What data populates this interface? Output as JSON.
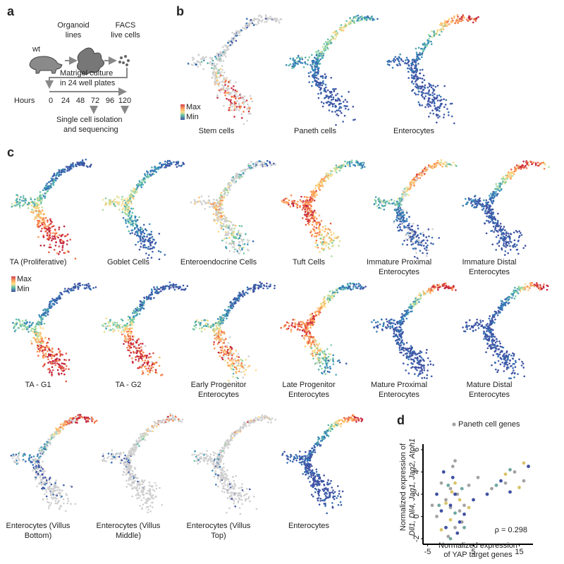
{
  "panel_a": {
    "label": "a",
    "wt": "wt",
    "organoid": [
      "Organoid",
      "lines"
    ],
    "facs": [
      "FACS",
      "live cells"
    ],
    "matrigel": [
      "Matrigel culture",
      "in 24 well plates"
    ],
    "hours_label": "Hours",
    "hours": [
      0,
      24,
      48,
      72,
      96,
      120
    ],
    "isolation": [
      "Single cell isolation",
      "and sequencing"
    ]
  },
  "panel_b": {
    "label": "b",
    "legend_max": "Max",
    "legend_min": "Min",
    "plots": [
      [
        "Stem cells"
      ],
      [
        "Paneth cells"
      ],
      [
        "Enterocytes"
      ]
    ]
  },
  "panel_c": {
    "label": "c",
    "legend_max": "Max",
    "legend_min": "Min",
    "plots": [
      [
        "TA (Proliferative)"
      ],
      [
        "Goblet Cells"
      ],
      [
        "Enteroendocrine Cells"
      ],
      [
        "Tuft Cells"
      ],
      [
        "Immature Proximal",
        "Enterocytes"
      ],
      [
        "Immature Distal",
        "Enterocytes"
      ],
      [
        "TA - G1"
      ],
      [
        "TA - G2"
      ],
      [
        "Early Progenitor",
        "Enterocytes"
      ],
      [
        "Late Progenitor",
        "Enterocytes"
      ],
      [
        "Mature Proximal",
        "Enterocytes"
      ],
      [
        "Mature Distal",
        "Enterocytes"
      ],
      [
        "Enterocytes (Villus",
        "Bottom)"
      ],
      [
        "Enterocytes (Villus",
        "Middle)"
      ],
      [
        "Enterocytes (Villus",
        "Top)"
      ],
      [
        "Enterocytes"
      ]
    ]
  },
  "panel_d": {
    "label": "d",
    "chart_data": {
      "type": "scatter",
      "ylabel": [
        "Normalized expression of",
        "Dll1, Dll4, Jag1, Jag2, Atoh1"
      ],
      "xlabel": [
        "Normalized expression",
        "of YAP target genes"
      ],
      "annotation": "ρ = 0.298",
      "xlim": [
        -6,
        18
      ],
      "ylim": [
        -2.5,
        6.5
      ],
      "xticks": [
        -5,
        5,
        15
      ],
      "yticks": [
        -2,
        0,
        2,
        4,
        6
      ],
      "legend": "top",
      "series": [
        {
          "name": "Paneth cell genes",
          "color": "#a3a3a3",
          "x": [
            -3,
            -1,
            0,
            1,
            2,
            -2,
            3,
            0.5,
            -0.5,
            1.5,
            4,
            6,
            9,
            12,
            14,
            16,
            -4,
            2.5,
            0,
            1
          ],
          "y": [
            0,
            1.5,
            2.5,
            -1,
            0.5,
            3,
            1,
            4.5,
            -1.8,
            2,
            2.8,
            3.5,
            2.5,
            3,
            4,
            3.2,
            1,
            -0.5,
            0.8,
            5
          ]
        },
        {
          "color": "#3f51a3",
          "x": [
            -2,
            -1,
            0,
            1,
            2,
            3,
            -3,
            0.5,
            1.5,
            8,
            11,
            13,
            17,
            5,
            -1.5
          ],
          "y": [
            0.5,
            -1,
            1,
            2,
            -0.5,
            0.2,
            2,
            3.5,
            -1.5,
            2,
            3.2,
            2.2,
            4.5,
            1.5,
            4
          ]
        },
        {
          "color": "#d9c36a",
          "x": [
            -1,
            0,
            1,
            2,
            -2,
            0.3,
            4,
            12,
            16,
            15
          ],
          "y": [
            1.2,
            -0.3,
            3,
            1.5,
            -1.2,
            2.2,
            0.8,
            3.8,
            4.8,
            2.6
          ]
        },
        {
          "color": "#6fa8a0",
          "x": [
            -0.5,
            1,
            2.5,
            -2.5,
            0,
            10,
            13,
            3
          ],
          "y": [
            2.8,
            0.3,
            2.5,
            1,
            -2,
            2.8,
            4.2,
            -1
          ]
        }
      ]
    }
  }
}
